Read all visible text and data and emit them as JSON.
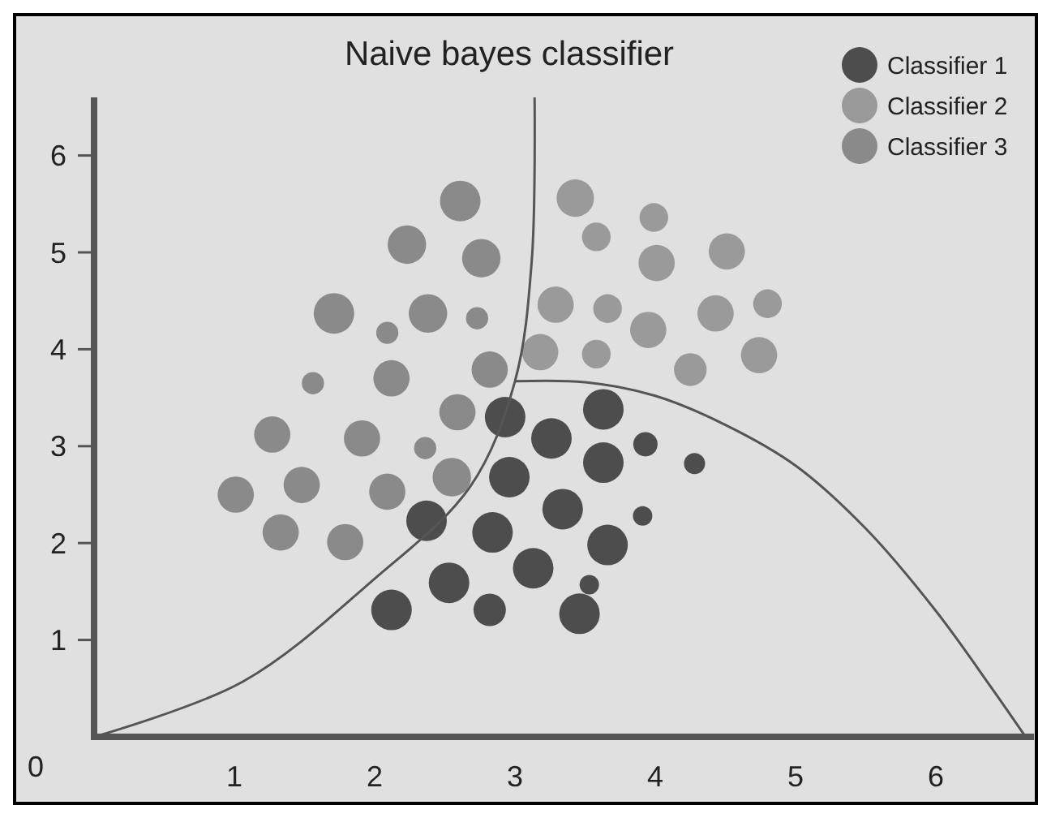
{
  "chart_data": {
    "type": "bubble",
    "title": "Naive bayes classifier",
    "xlim": [
      0,
      6.7
    ],
    "ylim": [
      0,
      6.6
    ],
    "xticks": [
      1,
      2,
      3,
      4,
      5,
      6
    ],
    "yticks": [
      1,
      2,
      3,
      4,
      5,
      6
    ],
    "annotations": [
      "0"
    ],
    "legend": "top right",
    "grid": false,
    "series": [
      {
        "name": "Classifier 1",
        "color": "#4d4d4d",
        "x": [
          2.93,
          3.26,
          3.63,
          3.93,
          4.28,
          2.96,
          3.63,
          3.34,
          2.37,
          2.84,
          3.66,
          3.91,
          3.13,
          2.53,
          3.53,
          2.12,
          2.82,
          3.46
        ],
        "values": [
          3.3,
          3.08,
          3.38,
          3.02,
          2.82,
          2.68,
          2.83,
          2.35,
          2.23,
          2.11,
          1.98,
          2.28,
          1.74,
          1.59,
          1.57,
          1.31,
          1.31,
          1.27
        ],
        "sizes": [
          1,
          1,
          1,
          0.36,
          0.27,
          1,
          1,
          1,
          1,
          1,
          1,
          0.23,
          1,
          1,
          0.23,
          1,
          0.64,
          1
        ]
      },
      {
        "name": "Classifier 2",
        "color": "#9a9a9a",
        "x": [
          3.43,
          3.99,
          3.58,
          4.01,
          4.51,
          3.29,
          3.66,
          3.95,
          4.43,
          4.8,
          3.18,
          3.58,
          4.25,
          4.74
        ],
        "values": [
          5.56,
          5.36,
          5.16,
          4.89,
          5.01,
          4.46,
          4.42,
          4.2,
          4.37,
          4.47,
          3.97,
          3.95,
          3.79,
          3.94
        ],
        "sizes": [
          0.85,
          0.5,
          0.5,
          0.8,
          0.8,
          0.8,
          0.5,
          0.8,
          0.8,
          0.5,
          0.8,
          0.5,
          0.65,
          0.8
        ]
      },
      {
        "name": "Classifier 3",
        "color": "#8a8a8a",
        "x": [
          2.61,
          2.23,
          2.76,
          1.71,
          2.38,
          2.09,
          2.73,
          2.12,
          1.56,
          2.82,
          1.27,
          1.91,
          2.36,
          2.59,
          2.55,
          1.48,
          2.09,
          1.01,
          1.33,
          1.79
        ],
        "values": [
          5.53,
          5.08,
          4.94,
          4.37,
          4.37,
          4.17,
          4.32,
          3.7,
          3.65,
          3.79,
          3.12,
          3.08,
          2.98,
          3.35,
          2.68,
          2.6,
          2.53,
          2.5,
          2.11,
          2.01
        ],
        "sizes": [
          1,
          0.9,
          0.9,
          1,
          0.9,
          0.3,
          0.3,
          0.8,
          0.3,
          0.8,
          0.8,
          0.8,
          0.3,
          0.8,
          0.9,
          0.8,
          0.8,
          0.8,
          0.8,
          0.8
        ]
      },
      {
        "type": "line",
        "color": "#555555",
        "x": [
          0,
          1.06,
          1.99,
          2.68,
          3.0,
          3.12,
          3.14
        ],
        "values": [
          0,
          0.57,
          1.62,
          2.58,
          3.67,
          4.92,
          6.6
        ]
      },
      {
        "type": "line",
        "color": "#555555",
        "x": [
          3.0,
          3.5,
          4.0,
          4.5,
          5.0,
          5.5,
          6.0,
          6.4,
          6.64
        ],
        "values": [
          3.67,
          3.66,
          3.52,
          3.22,
          2.8,
          2.15,
          1.3,
          0.5,
          0
        ]
      }
    ]
  }
}
